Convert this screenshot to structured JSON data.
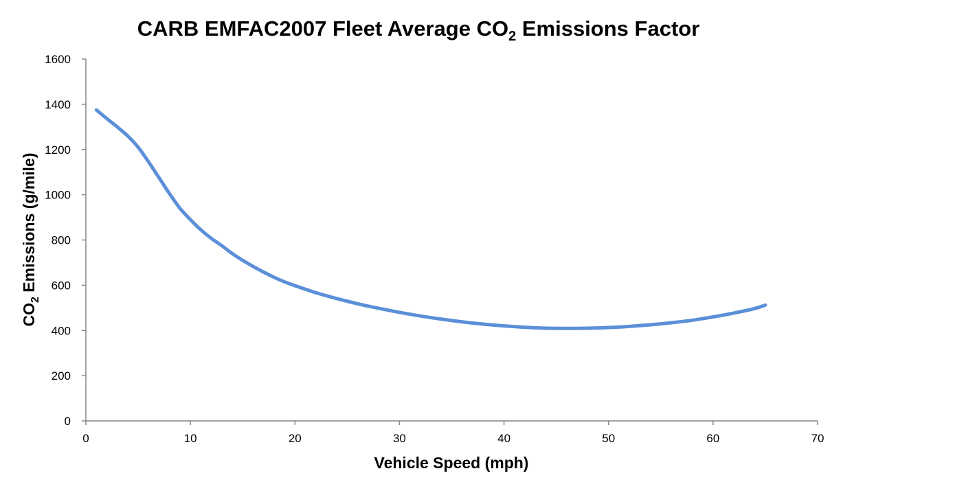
{
  "chart_data": {
    "type": "line",
    "title_main": "CARB EMFAC2007 Fleet Average CO",
    "title_sub": "2",
    "title_tail": " Emissions Factor",
    "xlabel": "Vehicle Speed (mph)",
    "ylabel_main": "CO",
    "ylabel_sub": "2",
    "ylabel_tail": " Emissions (g/mile)",
    "xlim": [
      0,
      70
    ],
    "ylim": [
      0,
      1600
    ],
    "x_ticks": [
      "0",
      "10",
      "20",
      "30",
      "40",
      "50",
      "60",
      "70"
    ],
    "y_ticks": [
      "0",
      "200",
      "400",
      "600",
      "800",
      "1000",
      "1200",
      "1400",
      "1600"
    ],
    "grid": false,
    "legend": "none",
    "series": [
      {
        "color": "#5b8fd8",
        "x": [
          1,
          2,
          3,
          4,
          5,
          6,
          7,
          8,
          9,
          10,
          11,
          12,
          13,
          14,
          15,
          16,
          17,
          18,
          19,
          20,
          22,
          24,
          26,
          28,
          30,
          32,
          34,
          36,
          38,
          40,
          42,
          44,
          46,
          48,
          50,
          52,
          54,
          56,
          58,
          60,
          62,
          64,
          65
        ],
        "y": [
          1375,
          1337,
          1300,
          1260,
          1210,
          1145,
          1075,
          1005,
          940,
          890,
          845,
          807,
          775,
          740,
          710,
          683,
          658,
          635,
          615,
          598,
          567,
          541,
          518,
          498,
          480,
          464,
          450,
          438,
          428,
          420,
          414,
          410,
          409,
          410,
          413,
          418,
          425,
          434,
          445,
          460,
          477,
          497,
          512
        ]
      }
    ]
  }
}
